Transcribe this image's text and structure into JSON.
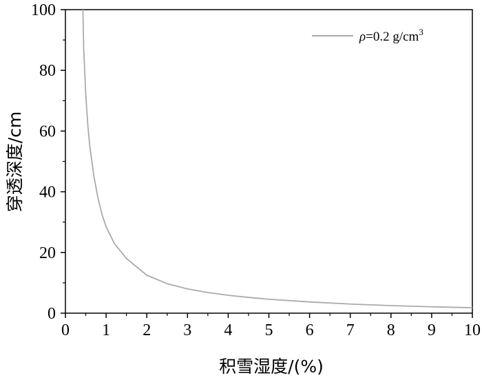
{
  "chart_data": {
    "type": "line",
    "xlabel": "积雪湿度/(%)",
    "ylabel": "穿透深度/cm",
    "xlim": [
      0,
      10
    ],
    "ylim": [
      0,
      100
    ],
    "xticks": [
      "0",
      "1",
      "2",
      "3",
      "4",
      "5",
      "6",
      "7",
      "8",
      "9",
      "10"
    ],
    "yticks": [
      "0",
      "20",
      "40",
      "60",
      "80",
      "100"
    ],
    "grid": false,
    "legend_position": "top-right",
    "series": [
      {
        "name_prefix": "ρ",
        "name_value": "=0.2 g/cm",
        "name_sup": "3",
        "color": "#aaaaaa",
        "x": [
          0.43,
          0.45,
          0.5,
          0.55,
          0.6,
          0.7,
          0.8,
          0.9,
          1.0,
          1.2,
          1.5,
          2.0,
          2.5,
          3.0,
          3.5,
          4.0,
          4.5,
          5.0,
          6.0,
          7.0,
          8.0,
          9.0,
          10.0
        ],
        "y": [
          100,
          87,
          72,
          62,
          55,
          45,
          38,
          32.5,
          28.5,
          23,
          18,
          12.5,
          9.7,
          8.0,
          6.8,
          5.9,
          5.2,
          4.6,
          3.7,
          3.0,
          2.5,
          2.1,
          1.8
        ]
      }
    ]
  }
}
